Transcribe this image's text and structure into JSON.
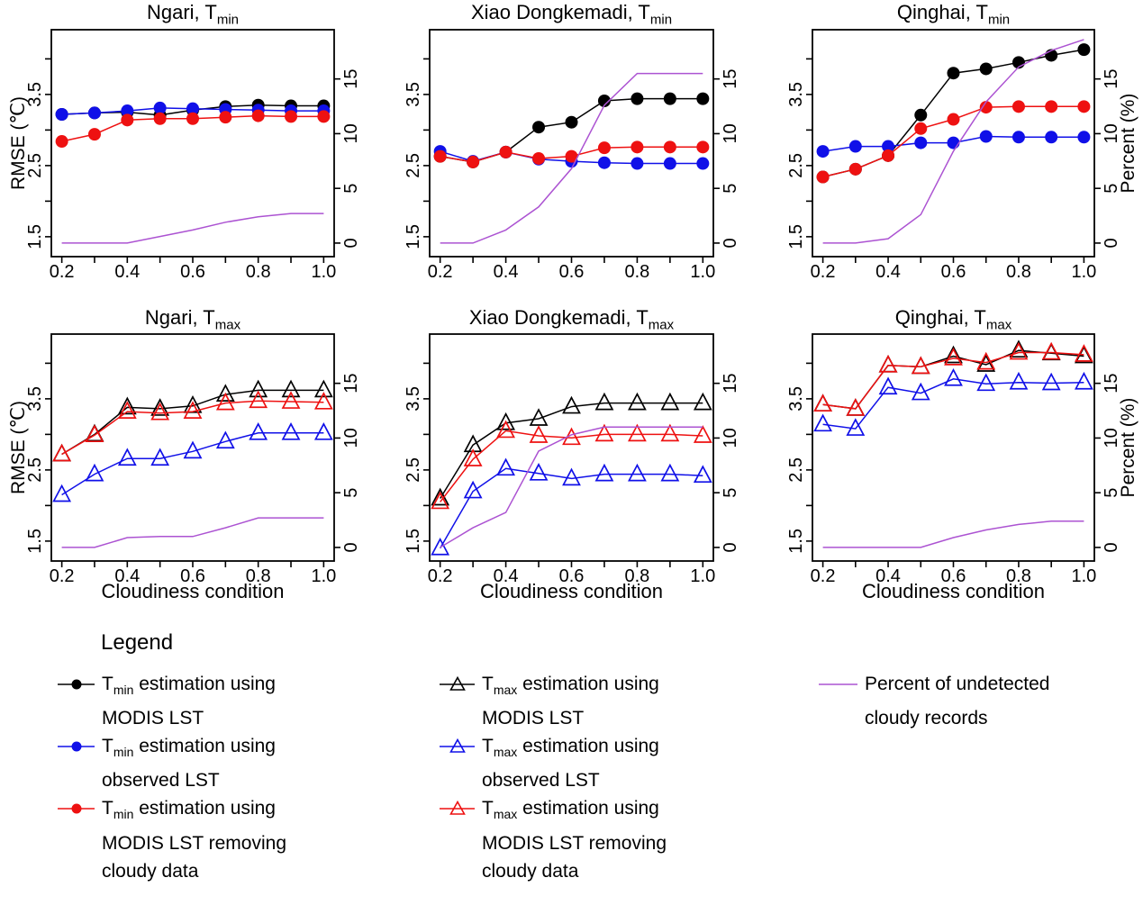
{
  "colors": {
    "black": "#000000",
    "blue": "#1010E8",
    "red": "#EE1111",
    "purple": "#AC53D2"
  },
  "axes": {
    "x": {
      "label": "Cloudiness condition",
      "ticks": [
        0.2,
        0.4,
        0.6,
        0.8,
        1.0
      ],
      "minor_ticks": [
        0.3,
        0.5,
        0.7,
        0.9
      ],
      "range": [
        0.168,
        1.032
      ]
    },
    "y_left": {
      "label": "RMSE (℃)",
      "ticks": [
        1.5,
        2.0,
        2.5,
        3.0,
        3.5,
        4.0
      ],
      "labeled_ticks": [
        1.5,
        2.5,
        3.5
      ],
      "range": [
        1.22,
        4.41
      ]
    },
    "y_right": {
      "label": "Percent (%)",
      "ticks": [
        0,
        5,
        10,
        15
      ],
      "range": [
        -1.24,
        19.5
      ]
    }
  },
  "x": [
    0.2,
    0.3,
    0.4,
    0.5,
    0.6,
    0.7,
    0.8,
    0.9,
    1.0
  ],
  "chart_data": [
    {
      "type": "line",
      "id": "ngari-tmin",
      "title_prefix": "Ngari, T",
      "title_sub": "min",
      "series": [
        {
          "name": "Tmin estimation using MODIS LST",
          "color": "black",
          "marker": "circle",
          "axis": "left",
          "values": [
            3.22,
            3.24,
            3.25,
            3.21,
            3.28,
            3.33,
            3.35,
            3.34,
            3.34
          ]
        },
        {
          "name": "Tmin estimation using observed LST",
          "color": "blue",
          "marker": "circle",
          "axis": "left",
          "values": [
            3.22,
            3.24,
            3.27,
            3.31,
            3.3,
            3.29,
            3.28,
            3.27,
            3.27
          ]
        },
        {
          "name": "Tmin estimation using MODIS LST removing cloudy data",
          "color": "red",
          "marker": "circle",
          "axis": "left",
          "values": [
            2.84,
            2.94,
            3.14,
            3.16,
            3.16,
            3.18,
            3.2,
            3.19,
            3.19
          ]
        },
        {
          "name": "Percent of undetected cloudy records",
          "color": "purple",
          "marker": null,
          "axis": "right",
          "values": [
            0,
            0,
            0,
            0.6,
            1.2,
            1.9,
            2.4,
            2.7,
            2.7
          ]
        }
      ]
    },
    {
      "type": "line",
      "id": "xiao-dongkemadi-tmin",
      "title_prefix": "Xiao Dongkemadi, T",
      "title_sub": "min",
      "series": [
        {
          "name": "Tmin estimation using MODIS LST",
          "color": "black",
          "marker": "circle",
          "axis": "left",
          "values": [
            2.63,
            2.55,
            2.69,
            3.04,
            3.11,
            3.41,
            3.44,
            3.44,
            3.44
          ]
        },
        {
          "name": "Tmin estimation using observed LST",
          "color": "blue",
          "marker": "circle",
          "axis": "left",
          "values": [
            2.7,
            2.56,
            2.69,
            2.59,
            2.56,
            2.54,
            2.53,
            2.53,
            2.53
          ]
        },
        {
          "name": "Tmin estimation using MODIS LST removing cloudy data",
          "color": "red",
          "marker": "circle",
          "axis": "left",
          "values": [
            2.63,
            2.55,
            2.69,
            2.6,
            2.63,
            2.75,
            2.76,
            2.76,
            2.76
          ]
        },
        {
          "name": "Percent of undetected cloudy records",
          "color": "purple",
          "marker": null,
          "axis": "right",
          "values": [
            0,
            0,
            1.2,
            3.3,
            6.8,
            12.6,
            15.5,
            15.5,
            15.5
          ]
        }
      ]
    },
    {
      "type": "line",
      "id": "qinghai-tmin",
      "title_prefix": "Qinghai, T",
      "title_sub": "min",
      "series": [
        {
          "name": "Tmin estimation using MODIS LST",
          "color": "black",
          "marker": "circle",
          "axis": "left",
          "values": [
            2.34,
            2.45,
            2.64,
            3.21,
            3.8,
            3.86,
            3.95,
            4.05,
            4.13
          ]
        },
        {
          "name": "Tmin estimation using observed LST",
          "color": "blue",
          "marker": "circle",
          "axis": "left",
          "values": [
            2.7,
            2.77,
            2.77,
            2.82,
            2.82,
            2.91,
            2.9,
            2.9,
            2.9
          ]
        },
        {
          "name": "Tmin estimation using MODIS LST removing cloudy data",
          "color": "red",
          "marker": "circle",
          "axis": "left",
          "values": [
            2.34,
            2.45,
            2.64,
            3.02,
            3.15,
            3.32,
            3.33,
            3.33,
            3.33
          ]
        },
        {
          "name": "Percent of undetected cloudy records",
          "color": "purple",
          "marker": null,
          "axis": "right",
          "values": [
            0,
            0,
            0.4,
            2.6,
            8.4,
            12.9,
            16.1,
            17.6,
            18.6
          ]
        }
      ]
    },
    {
      "type": "line",
      "id": "ngari-tmax",
      "title_prefix": "Ngari, T",
      "title_sub": "max",
      "series": [
        {
          "name": "Tmax estimation using MODIS LST",
          "color": "black",
          "marker": "triangle",
          "axis": "left",
          "values": [
            2.72,
            3.0,
            3.38,
            3.36,
            3.4,
            3.56,
            3.62,
            3.62,
            3.62
          ]
        },
        {
          "name": "Tmax estimation using observed LST",
          "color": "blue",
          "marker": "triangle",
          "axis": "left",
          "values": [
            2.15,
            2.44,
            2.66,
            2.66,
            2.76,
            2.9,
            3.02,
            3.02,
            3.02
          ]
        },
        {
          "name": "Tmax estimation using MODIS LST removing cloudy data",
          "color": "red",
          "marker": "triangle",
          "axis": "left",
          "values": [
            2.72,
            2.99,
            3.32,
            3.3,
            3.32,
            3.44,
            3.47,
            3.46,
            3.45
          ]
        },
        {
          "name": "Percent of undetected cloudy records",
          "color": "purple",
          "marker": null,
          "axis": "right",
          "values": [
            0,
            0,
            0.9,
            1.0,
            1.0,
            1.8,
            2.7,
            2.7,
            2.7
          ]
        }
      ]
    },
    {
      "type": "line",
      "id": "xiao-dongkemadi-tmax",
      "title_prefix": "Xiao Dongkemadi, T",
      "title_sub": "max",
      "series": [
        {
          "name": "Tmax estimation using MODIS LST",
          "color": "black",
          "marker": "triangle",
          "axis": "left",
          "values": [
            2.1,
            2.85,
            3.16,
            3.22,
            3.39,
            3.44,
            3.44,
            3.44,
            3.44
          ]
        },
        {
          "name": "Tmax estimation using observed LST",
          "color": "blue",
          "marker": "triangle",
          "axis": "left",
          "values": [
            1.4,
            2.2,
            2.52,
            2.45,
            2.38,
            2.44,
            2.44,
            2.44,
            2.42
          ]
        },
        {
          "name": "Tmax estimation using MODIS LST removing cloudy data",
          "color": "red",
          "marker": "triangle",
          "axis": "left",
          "values": [
            2.05,
            2.65,
            3.05,
            2.98,
            2.95,
            3.0,
            3.0,
            3.0,
            2.98
          ]
        },
        {
          "name": "Percent of undetected cloudy records",
          "color": "purple",
          "marker": null,
          "axis": "right",
          "values": [
            0,
            1.8,
            3.2,
            8.8,
            10.3,
            11.0,
            11.0,
            11.0,
            11.0
          ]
        }
      ]
    },
    {
      "type": "line",
      "id": "qinghai-tmax",
      "title_prefix": "Qinghai, T",
      "title_sub": "max",
      "series": [
        {
          "name": "Tmax estimation using MODIS LST",
          "color": "black",
          "marker": "triangle",
          "axis": "left",
          "values": [
            3.42,
            3.36,
            3.97,
            3.95,
            4.1,
            3.98,
            4.18,
            4.14,
            4.1
          ]
        },
        {
          "name": "Tmax estimation using observed LST",
          "color": "blue",
          "marker": "triangle",
          "axis": "left",
          "values": [
            3.14,
            3.08,
            3.66,
            3.58,
            3.78,
            3.71,
            3.73,
            3.72,
            3.73
          ]
        },
        {
          "name": "Tmax estimation using MODIS LST removing cloudy data",
          "color": "red",
          "marker": "triangle",
          "axis": "left",
          "values": [
            3.42,
            3.36,
            3.97,
            3.95,
            4.07,
            4.01,
            4.15,
            4.15,
            4.12
          ]
        },
        {
          "name": "Percent of undetected cloudy records",
          "color": "purple",
          "marker": null,
          "axis": "right",
          "values": [
            0,
            0,
            0,
            0,
            0.9,
            1.6,
            2.1,
            2.4,
            2.4
          ]
        }
      ]
    }
  ],
  "legend": {
    "header": "Legend",
    "columns": [
      {
        "items": [
          {
            "marker": "circle",
            "color": "black",
            "prefix": "T",
            "sub": "min",
            "rest": " estimation using",
            "lines": [
              "MODIS LST"
            ]
          },
          {
            "marker": "circle",
            "color": "blue",
            "prefix": "T",
            "sub": "min",
            "rest": " estimation using",
            "lines": [
              "observed LST"
            ]
          },
          {
            "marker": "circle",
            "color": "red",
            "prefix": "T",
            "sub": "min",
            "rest": " estimation using",
            "lines": [
              "MODIS LST removing",
              "cloudy data"
            ]
          }
        ]
      },
      {
        "items": [
          {
            "marker": "triangle",
            "color": "black",
            "prefix": "T",
            "sub": "max",
            "rest": " estimation using",
            "lines": [
              "MODIS LST"
            ]
          },
          {
            "marker": "triangle",
            "color": "blue",
            "prefix": "T",
            "sub": "max",
            "rest": " estimation using",
            "lines": [
              "observed LST"
            ]
          },
          {
            "marker": "triangle",
            "color": "red",
            "prefix": "T",
            "sub": "max",
            "rest": " estimation using",
            "lines": [
              "MODIS LST removing",
              "cloudy data"
            ]
          }
        ]
      },
      {
        "items": [
          {
            "marker": "line",
            "color": "purple",
            "prefix": "",
            "sub": "",
            "rest": "Percent of undetected",
            "lines": [
              "cloudy records"
            ]
          }
        ]
      }
    ]
  }
}
